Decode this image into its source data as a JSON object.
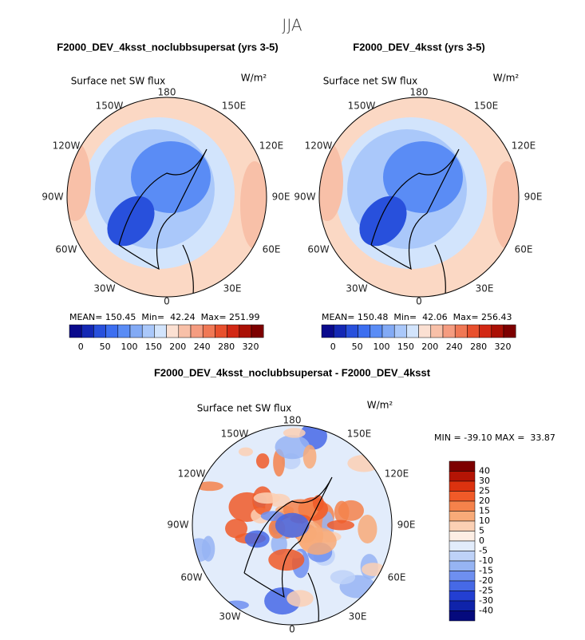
{
  "figure_title": "JJA",
  "panels": [
    {
      "title": "F2000_DEV_4ksst_noclubbsupersat (yrs 3-5)",
      "variable": "Surface net SW flux",
      "units": "W/m²",
      "lon_labels": [
        "180",
        "150W",
        "150E",
        "120W",
        "120E",
        "90W",
        "90E",
        "60W",
        "60E",
        "30W",
        "30E",
        "0"
      ],
      "stats": "MEAN= 150.45  Min=  42.24  Max= 251.99",
      "colorbar_labels": [
        0,
        50,
        100,
        150,
        200,
        240,
        280,
        320
      ]
    },
    {
      "title": "F2000_DEV_4ksst (yrs 3-5)",
      "variable": "Surface net SW flux",
      "units": "W/m²",
      "lon_labels": [
        "180",
        "150W",
        "150E",
        "120W",
        "120E",
        "90W",
        "90E",
        "60W",
        "60E",
        "30W",
        "30E",
        "0"
      ],
      "stats": "MEAN= 150.48  Min=  42.06  Max= 256.43",
      "colorbar_labels": [
        0,
        50,
        100,
        150,
        200,
        240,
        280,
        320
      ]
    },
    {
      "title": "F2000_DEV_4ksst_noclubbsupersat - F2000_DEV_4ksst",
      "variable": "Surface net SW flux",
      "units": "W/m²",
      "lon_labels": [
        "180",
        "150W",
        "150E",
        "120W",
        "120E",
        "90W",
        "90E",
        "60W",
        "60E",
        "30W",
        "30E",
        "0"
      ],
      "stats": "MIN = -39.10 MAX =  33.87",
      "colorbar_labels": [
        40,
        30,
        25,
        20,
        15,
        10,
        5,
        0,
        -5,
        -10,
        -15,
        -20,
        -25,
        -30,
        -40
      ]
    }
  ]
}
